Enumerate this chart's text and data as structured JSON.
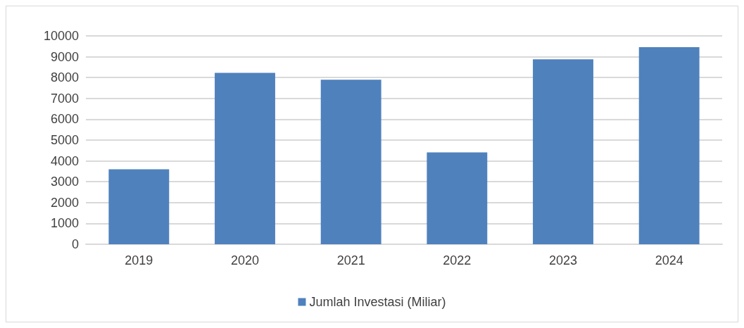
{
  "chart_data": {
    "type": "bar",
    "categories": [
      "2019",
      "2020",
      "2021",
      "2022",
      "2023",
      "2024"
    ],
    "series": [
      {
        "name": "Jumlah Investasi (Miliar)",
        "color": "#4f81bd",
        "values": [
          3600,
          8230,
          7900,
          4410,
          8880,
          9460
        ]
      }
    ],
    "ylim": [
      0,
      10000
    ],
    "yticks": [
      0,
      1000,
      2000,
      3000,
      4000,
      5000,
      6000,
      7000,
      8000,
      9000,
      10000
    ],
    "grid": "y",
    "legend": "bottom"
  }
}
